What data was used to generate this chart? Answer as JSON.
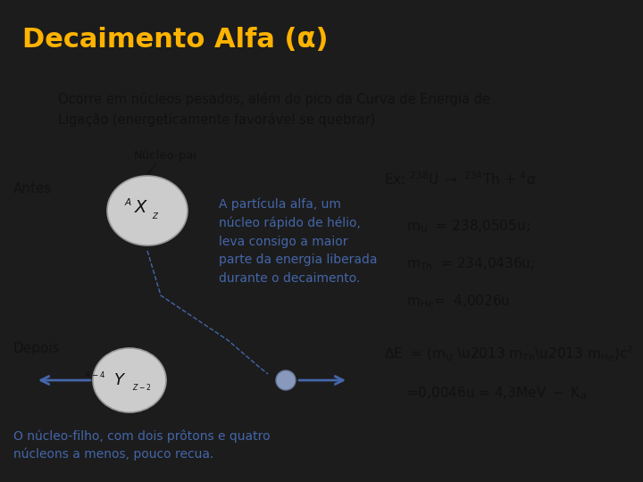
{
  "title": "Decaimento Alfa (α)",
  "title_color": "#FFB300",
  "title_fontsize": 22,
  "bg_color": "#1c1c1c",
  "text_color_black": "#111111",
  "text_color_blue": "#4466AA",
  "subtitle": "Ocorre em núcleos pesados, além do pico da Curva de Energia de\nLigação (energeticamente favorável se quebrar)",
  "before_label": "Antes",
  "after_label": "Depois",
  "nucleus_pai_label": "Núcleo-pai",
  "blue_text": "A partícula alfa, um\nnúcleo rápido de hélio,\nleva consigo a maior\nparte da energia liberada\ndurante o decaimento.",
  "bottom_blue_text": "O núcleo-filho, com dois prôtons e quatro\nnúcleons a menos, pouco recua.",
  "content_bg": "#f0f0ec"
}
